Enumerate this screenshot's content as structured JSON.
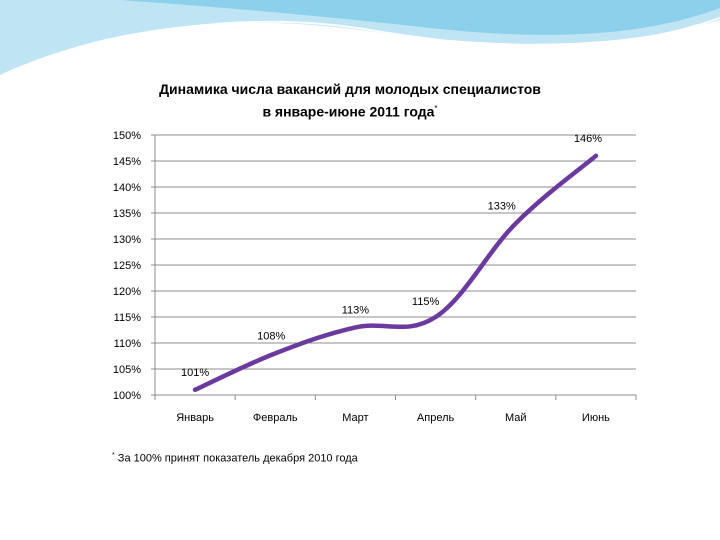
{
  "chart_data": {
    "type": "line",
    "title_line1": "Динамика числа вакансий для молодых специалистов",
    "title_line2": "в январе-июне 2011 года",
    "title_mark": "*",
    "categories": [
      "Январь",
      "Февраль",
      "Март",
      "Апрель",
      "Май",
      "Июнь"
    ],
    "series": [
      {
        "values": [
          101,
          108,
          113,
          115,
          133,
          146
        ],
        "data_labels": [
          "101%",
          "108%",
          "113%",
          "115%",
          "133%",
          "146%"
        ]
      }
    ],
    "y_ticks": [
      100,
      105,
      110,
      115,
      120,
      125,
      130,
      135,
      140,
      145,
      150
    ],
    "y_tick_labels": [
      "100%",
      "105%",
      "110%",
      "115%",
      "120%",
      "125%",
      "130%",
      "135%",
      "140%",
      "145%",
      "150%"
    ],
    "ylim": [
      100,
      150
    ],
    "grid": true,
    "legend": "none",
    "line_color": "#6b3a9e"
  },
  "footnote": {
    "mark": "*",
    "text": "За 100% принят показатель декабря 2010 года"
  },
  "decoration": {
    "wave_color_light": "#bfe4f4",
    "wave_color_dark": "#7fcbe9"
  }
}
